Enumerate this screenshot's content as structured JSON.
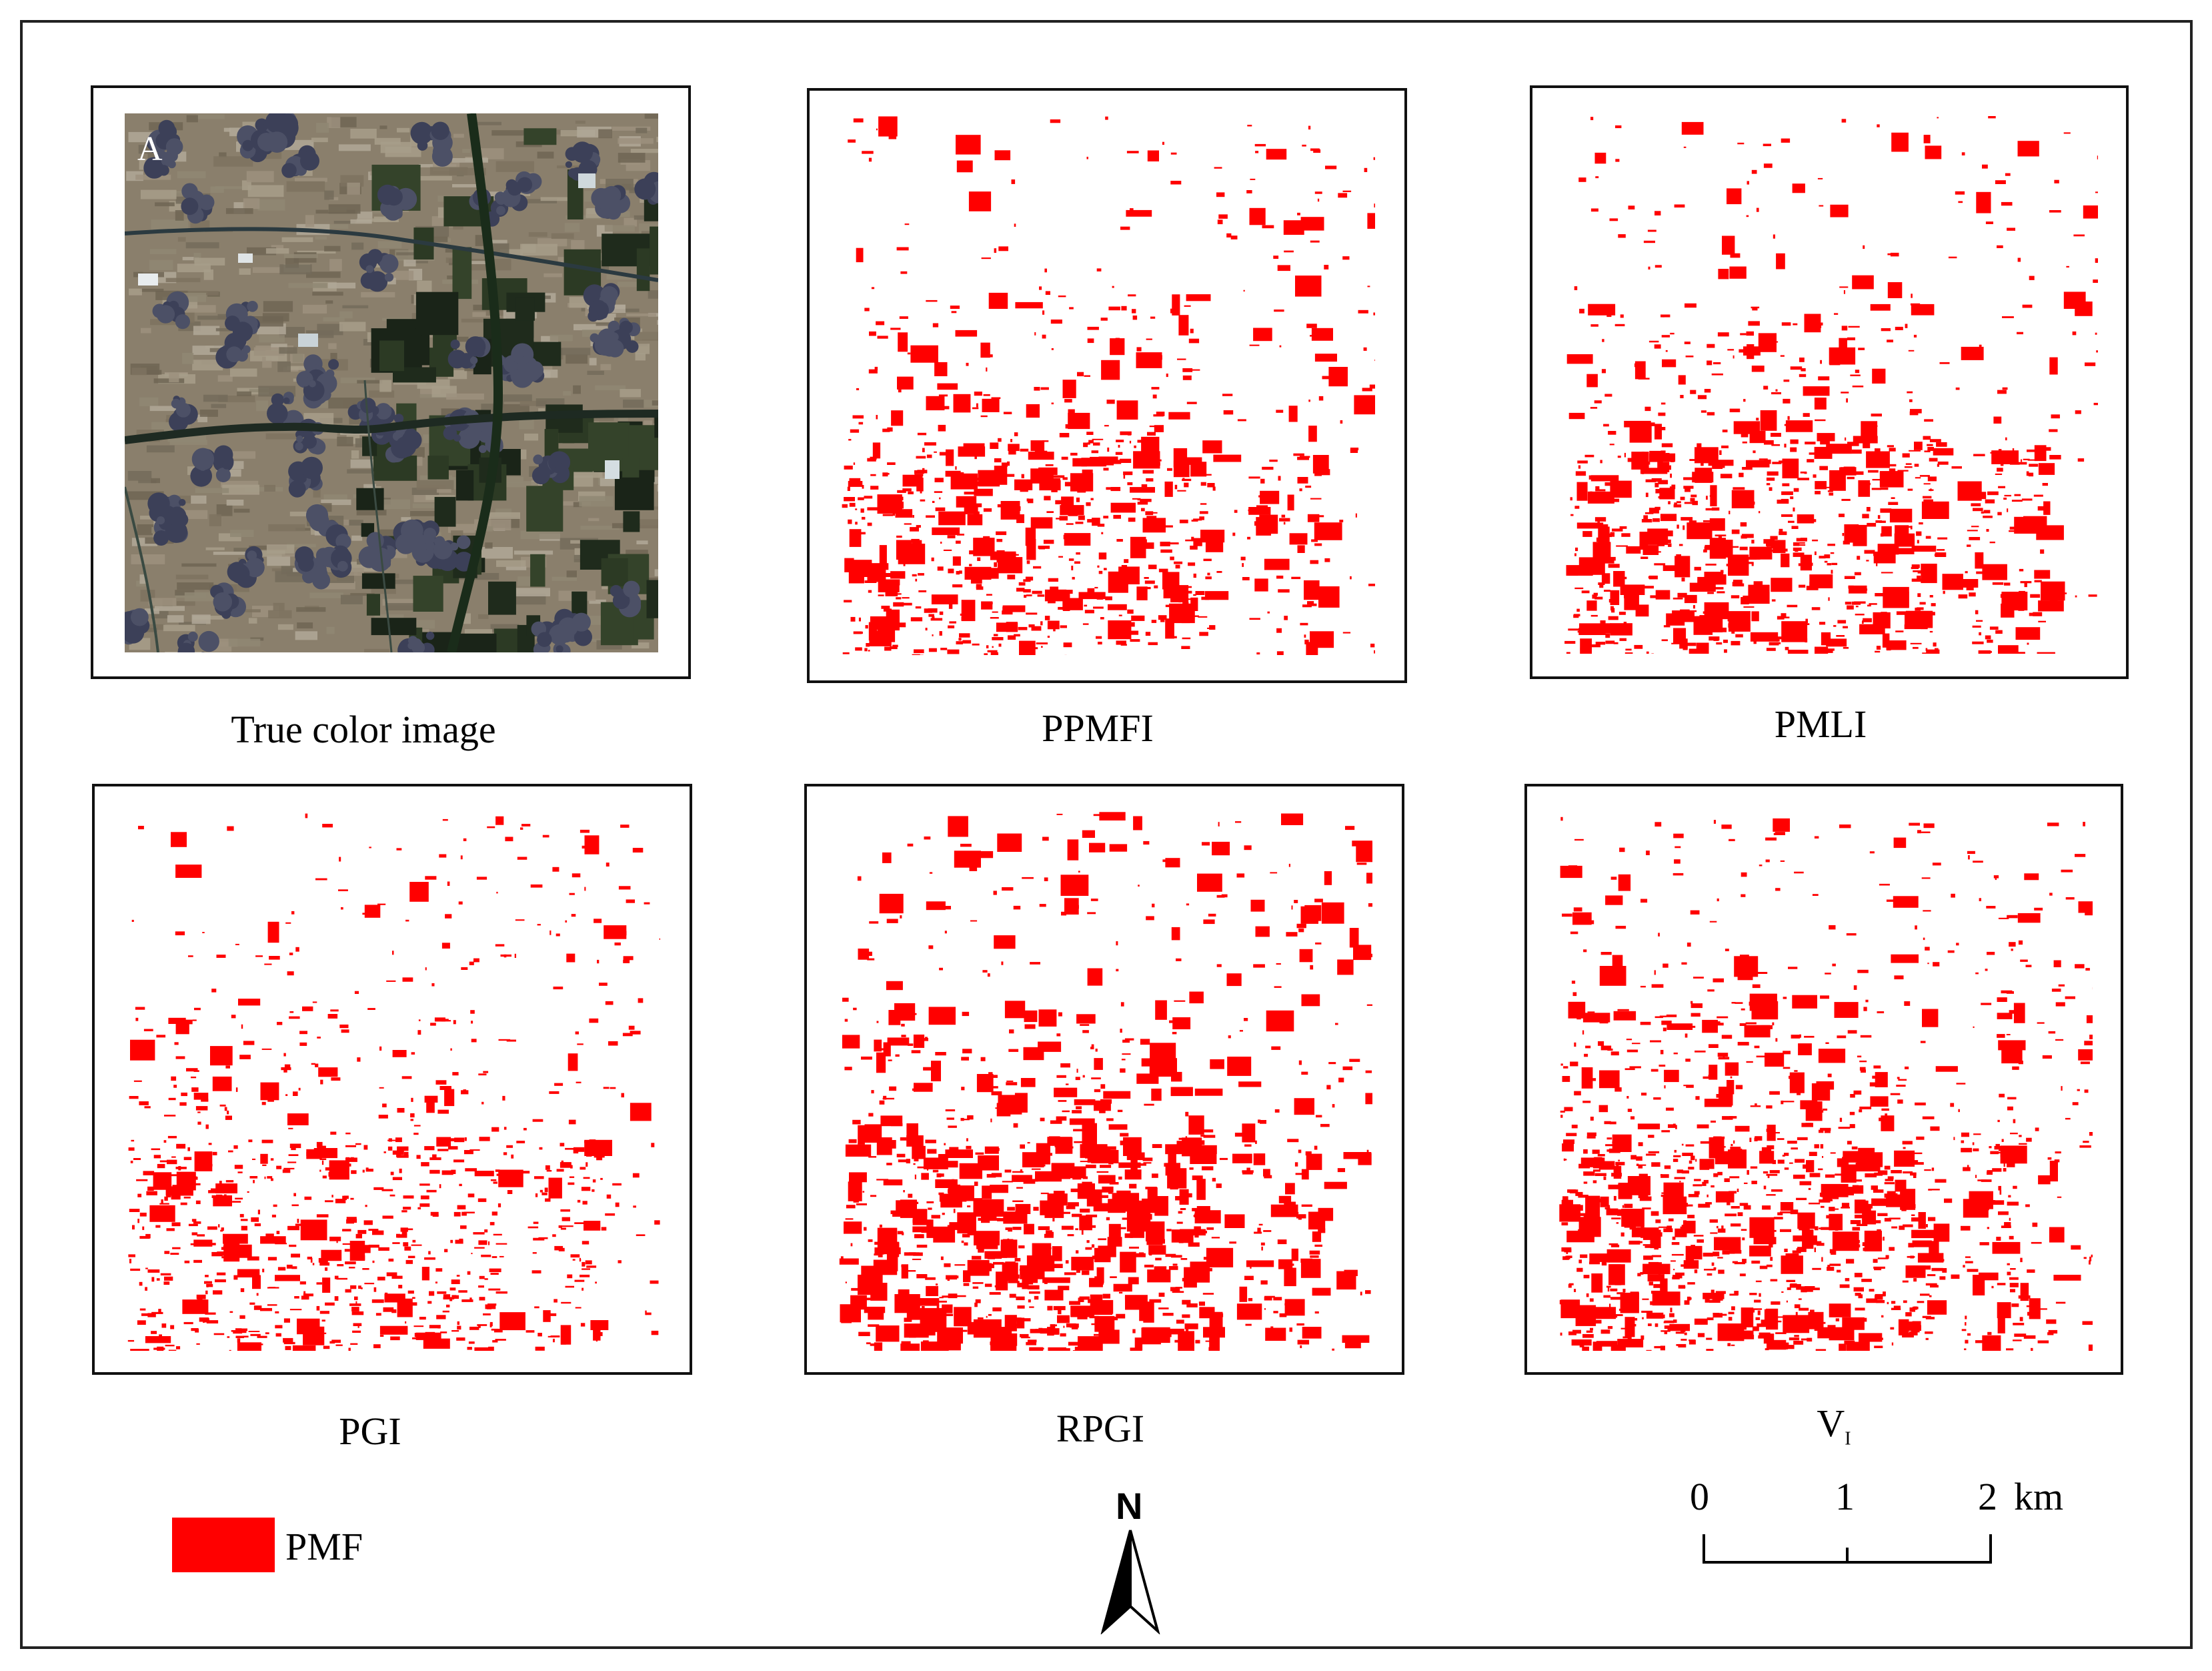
{
  "panels": [
    {
      "id": "true-color",
      "caption": "True color image",
      "label": "A"
    },
    {
      "id": "ppmfi",
      "caption": "PPMFI"
    },
    {
      "id": "pmli",
      "caption": "PMLI"
    },
    {
      "id": "pgi",
      "caption": "PGI"
    },
    {
      "id": "rpgi",
      "caption": "RPGI"
    },
    {
      "id": "vi",
      "caption_main": "V",
      "caption_sub": "I"
    }
  ],
  "legend": {
    "label": "PMF",
    "color": "#ff0000"
  },
  "north_arrow": {
    "letter": "N"
  },
  "scale_bar": {
    "ticks": [
      "0",
      "1",
      "2"
    ],
    "unit": "km"
  },
  "colors": {
    "pmf": "#ff0000",
    "frame": "#111111"
  }
}
